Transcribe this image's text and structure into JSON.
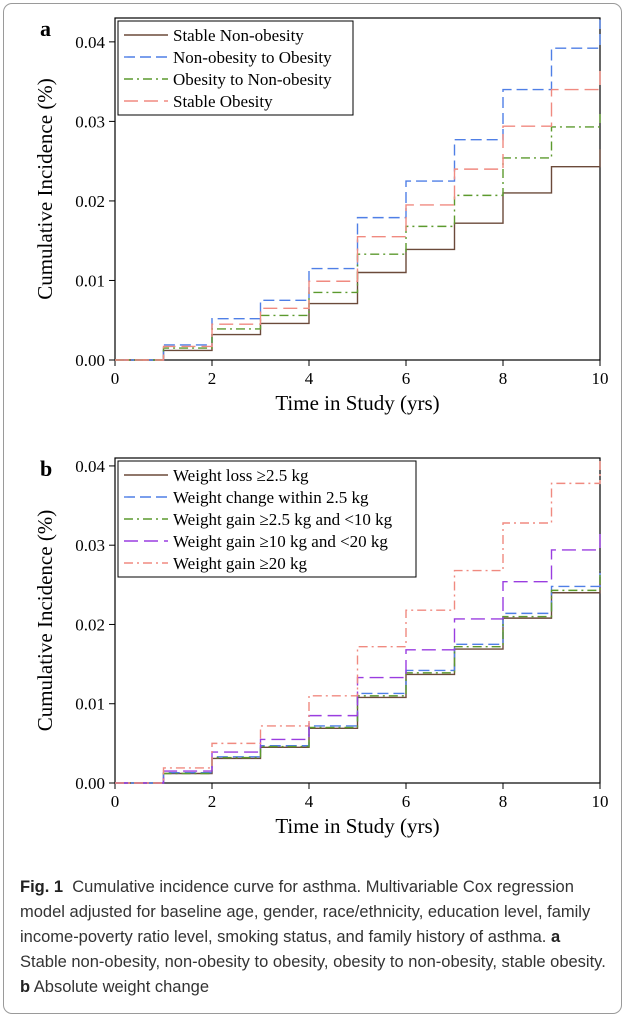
{
  "chart_data": [
    {
      "panel": "a",
      "type": "line",
      "step": true,
      "xlabel": "Time in Study (yrs)",
      "ylabel": "Cumulative Incidence (%)",
      "xlim": [
        0,
        10
      ],
      "ylim": [
        0,
        0.043
      ],
      "xticks": [
        "0",
        "2",
        "4",
        "6",
        "8",
        "10"
      ],
      "yticks": [
        "0.00",
        "0.01",
        "0.02",
        "0.03",
        "0.04"
      ],
      "x": [
        0,
        1,
        2,
        3,
        4,
        5,
        6,
        7,
        8,
        9,
        10
      ],
      "legend_position": "top-left",
      "series": [
        {
          "name": "Stable Non-obesity",
          "color": "#6b4a3a",
          "dash": "solid",
          "values": [
            0,
            0.0012,
            0.0032,
            0.0046,
            0.0071,
            0.011,
            0.0139,
            0.0172,
            0.021,
            0.0243,
            0.0265
          ]
        },
        {
          "name": "Non-obesity to Obesity",
          "color": "#4f7fe6",
          "dash": "longdash",
          "values": [
            0,
            0.0019,
            0.0052,
            0.0075,
            0.0115,
            0.0179,
            0.0225,
            0.0277,
            0.034,
            0.0392,
            0.0428
          ]
        },
        {
          "name": "Obesity to Non-obesity",
          "color": "#5c9a2e",
          "dash": "dashdot",
          "values": [
            0,
            0.0015,
            0.0039,
            0.0056,
            0.0085,
            0.0133,
            0.0168,
            0.0207,
            0.0254,
            0.0293,
            0.0312
          ]
        },
        {
          "name": "Stable Obesity",
          "color": "#f08a80",
          "dash": "longdash2",
          "values": [
            0,
            0.0017,
            0.0045,
            0.0065,
            0.0099,
            0.0155,
            0.0195,
            0.024,
            0.0294,
            0.034,
            0.037
          ]
        }
      ]
    },
    {
      "panel": "b",
      "type": "line",
      "step": true,
      "xlabel": "Time in Study (yrs)",
      "ylabel": "Cumulative Incidence (%)",
      "xlim": [
        0,
        10
      ],
      "ylim": [
        0,
        0.041
      ],
      "xticks": [
        "0",
        "2",
        "4",
        "6",
        "8",
        "10"
      ],
      "yticks": [
        "0.00",
        "0.01",
        "0.02",
        "0.03",
        "0.04"
      ],
      "x": [
        0,
        1,
        2,
        3,
        4,
        5,
        6,
        7,
        8,
        9,
        10
      ],
      "legend_position": "top-left",
      "series": [
        {
          "name": "Weight loss ≥2.5 kg",
          "color": "#6b4a3a",
          "dash": "solid",
          "values": [
            0,
            0.0012,
            0.0031,
            0.0045,
            0.0069,
            0.0108,
            0.0137,
            0.0169,
            0.0208,
            0.024,
            0.026
          ]
        },
        {
          "name": "Weight change within 2.5 kg",
          "color": "#4f7fe6",
          "dash": "longdash",
          "values": [
            0,
            0.0013,
            0.0033,
            0.0047,
            0.0072,
            0.0113,
            0.0142,
            0.0175,
            0.0214,
            0.0248,
            0.0265
          ]
        },
        {
          "name": "Weight gain ≥2.5 kg and <10 kg",
          "color": "#5c9a2e",
          "dash": "dashdot",
          "values": [
            0,
            0.0012,
            0.0032,
            0.0046,
            0.007,
            0.011,
            0.0139,
            0.0172,
            0.021,
            0.0243,
            0.0268
          ]
        },
        {
          "name": "Weight gain ≥10 kg and <20 kg",
          "color": "#9a3de0",
          "dash": "longdash2",
          "values": [
            0,
            0.0015,
            0.0039,
            0.0055,
            0.0085,
            0.0133,
            0.0168,
            0.0207,
            0.0254,
            0.0294,
            0.032
          ]
        },
        {
          "name": "Weight gain ≥20 kg",
          "color": "#f08a80",
          "dash": "dashdot",
          "values": [
            0,
            0.0019,
            0.005,
            0.0072,
            0.011,
            0.0172,
            0.0218,
            0.0268,
            0.0328,
            0.0378,
            0.0408
          ]
        }
      ]
    }
  ],
  "caption": {
    "fig_label": "Fig. 1",
    "text": "Cumulative incidence curve for asthma. Multivariable Cox regression model adjusted for baseline age, gender, race/ethnicity, education level, family income-poverty ratio level, smoking status, and family history of asthma.",
    "a_label": "a",
    "a_text": "Stable non-obesity, non-obesity to obesity, obesity to non-obesity, stable obesity.",
    "b_label": "b",
    "b_text": "Absolute weight change"
  }
}
